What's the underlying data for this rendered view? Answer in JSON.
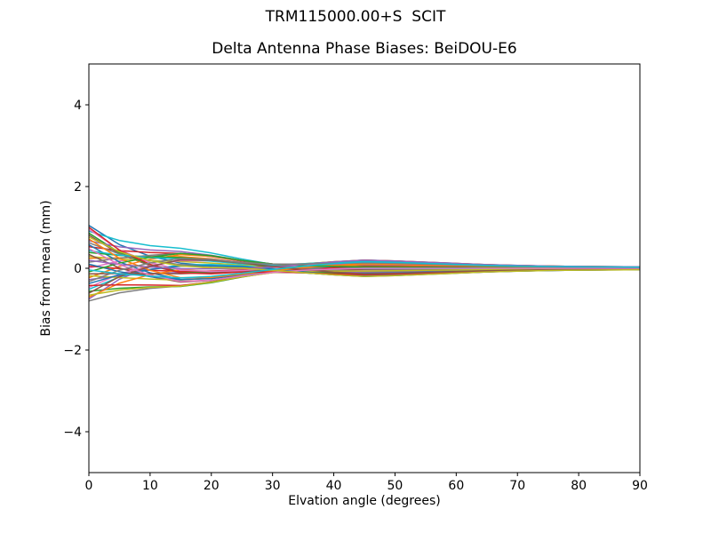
{
  "figure": {
    "suptitle": "TRM115000.00+S  SCIT",
    "background": "#ffffff",
    "text_color": "#000000"
  },
  "chart_data": {
    "type": "line",
    "title": "Delta Antenna Phase Biases: BeiDOU-E6",
    "xlabel": "Elvation angle (degrees)",
    "ylabel": "Bias from mean (mm)",
    "xlim": [
      0,
      90
    ],
    "ylim": [
      -5,
      5
    ],
    "xticks": [
      0,
      10,
      20,
      30,
      40,
      50,
      60,
      70,
      80,
      90
    ],
    "xtick_labels": [
      "0",
      "10",
      "20",
      "30",
      "40",
      "50",
      "60",
      "70",
      "80",
      "90"
    ],
    "yticks": [
      -4,
      -2,
      0,
      2,
      4
    ],
    "ytick_labels": [
      "−4",
      "−2",
      "0",
      "2",
      "4"
    ],
    "grid": false,
    "legend": "none",
    "line_width": 1.5,
    "colors": [
      "#1f77b4",
      "#ff7f0e",
      "#2ca02c",
      "#d62728",
      "#9467bd",
      "#8c564b",
      "#e377c2",
      "#7f7f7f",
      "#bcbd22",
      "#17becf"
    ],
    "x": [
      0,
      5,
      10,
      15,
      20,
      25,
      30,
      35,
      40,
      45,
      50,
      55,
      60,
      65,
      70,
      75,
      80,
      85,
      90
    ],
    "series": [
      {
        "values": [
          1.05,
          0.578,
          0.294,
          0.126,
          0.063,
          0.032,
          0.04,
          0.1,
          0.16,
          0.2,
          0.18,
          0.15,
          0.12,
          0.09,
          0.07,
          0.055,
          0.045,
          0.04,
          0.035
        ]
      },
      {
        "values": [
          0.244,
          0.256,
          0.271,
          0.286,
          0.231,
          0.142,
          0.038,
          -0.04,
          -0.104,
          -0.147,
          -0.133,
          -0.111,
          -0.088,
          -0.066,
          -0.052,
          -0.041,
          -0.033,
          -0.029,
          -0.026
        ]
      },
      {
        "values": [
          -0.563,
          -0.489,
          -0.457,
          -0.446,
          -0.353,
          -0.216,
          -0.096,
          -0.041,
          -0.006,
          0.017,
          0.016,
          0.013,
          0.01,
          0.008,
          0.006,
          0.005,
          0.004,
          0.003,
          0.003
        ]
      },
      {
        "values": [
          0.528,
          0.433,
          0.386,
          0.364,
          0.286,
          0.175,
          0.104,
          0.101,
          0.113,
          0.122,
          0.11,
          0.091,
          0.073,
          0.055,
          0.043,
          0.033,
          0.027,
          0.024,
          0.021
        ]
      },
      {
        "values": [
          -0.278,
          -0.184,
          -0.13,
          -0.1,
          -0.073,
          -0.043,
          -0.057,
          -0.107,
          -0.161,
          -0.197,
          -0.177,
          -0.148,
          -0.118,
          -0.089,
          -0.069,
          -0.054,
          -0.044,
          -0.039,
          -0.034
        ]
      },
      {
        "values": [
          0.813,
          0.35,
          0.066,
          -0.108,
          -0.124,
          -0.084,
          -0.02,
          0.057,
          0.124,
          0.168,
          0.152,
          0.126,
          0.101,
          0.076,
          0.059,
          0.046,
          0.038,
          0.034,
          0.029
        ]
      },
      {
        "values": [
          0.006,
          0.177,
          0.291,
          0.368,
          0.309,
          0.193,
          0.086,
          0.022,
          -0.022,
          -0.052,
          -0.047,
          -0.039,
          -0.031,
          -0.023,
          -0.018,
          -0.014,
          -0.012,
          -0.01,
          -0.009
        ]
      },
      {
        "values": [
          -0.8,
          -0.6,
          -0.491,
          -0.434,
          -0.332,
          -0.202,
          -0.107,
          -0.09,
          -0.091,
          -0.092,
          -0.082,
          -0.069,
          -0.055,
          -0.041,
          -0.032,
          -0.025,
          -0.021,
          -0.018,
          -0.016
        ]
      },
      {
        "values": [
          0.291,
          0.222,
          0.184,
          0.165,
          0.127,
          0.078,
          0.072,
          0.111,
          0.157,
          0.188,
          0.169,
          0.141,
          0.113,
          0.085,
          0.066,
          0.052,
          0.042,
          0.038,
          0.033
        ]
      },
      {
        "values": [
          -0.515,
          -0.214,
          -0.029,
          0.083,
          0.091,
          0.061,
          0.001,
          -0.073,
          -0.14,
          -0.185,
          -0.166,
          -0.139,
          -0.111,
          -0.083,
          -0.065,
          -0.051,
          -0.042,
          -0.037,
          -0.032
        ]
      },
      {
        "values": [
          0.576,
          0.154,
          -0.111,
          -0.275,
          -0.255,
          -0.164,
          -0.074,
          -0.003,
          0.05,
          0.085,
          0.076,
          0.063,
          0.051,
          0.038,
          0.03,
          0.023,
          0.019,
          0.017,
          0.015
        ]
      },
      {
        "values": [
          -0.231,
          0.045,
          0.221,
          0.335,
          0.291,
          0.184,
          0.107,
          0.078,
          0.067,
          0.06,
          0.054,
          0.045,
          0.036,
          0.027,
          0.021,
          0.016,
          0.013,
          0.012,
          0.01
        ]
      },
      {
        "values": [
          0.86,
          0.383,
          0.091,
          -0.087,
          -0.108,
          -0.074,
          -0.085,
          -0.112,
          -0.149,
          -0.173,
          -0.156,
          -0.13,
          -0.104,
          -0.078,
          -0.061,
          -0.048,
          -0.039,
          -0.035,
          -0.03
        ]
      },
      {
        "values": [
          0.054,
          -0.009,
          -0.05,
          -0.076,
          -0.066,
          -0.041,
          0.017,
          0.087,
          0.152,
          0.195,
          0.176,
          0.147,
          0.117,
          0.088,
          0.068,
          0.054,
          0.044,
          0.039,
          0.034
        ]
      },
      {
        "values": [
          -0.753,
          -0.267,
          0.034,
          0.221,
          0.217,
          0.141,
          0.059,
          -0.017,
          -0.076,
          -0.115,
          -0.104,
          -0.086,
          -0.069,
          -0.052,
          -0.04,
          -0.032,
          -0.026,
          -0.023,
          -0.02
        ]
      },
      {
        "values": [
          0.338,
          0.007,
          -0.203,
          -0.336,
          -0.297,
          -0.188,
          -0.104,
          -0.063,
          -0.041,
          -0.026,
          -0.023,
          -0.019,
          -0.015,
          -0.012,
          -0.009,
          -0.007,
          -0.006,
          -0.005,
          -0.005
        ]
      },
      {
        "values": [
          -0.468,
          -0.141,
          0.063,
          0.189,
          0.178,
          0.115,
          0.096,
          0.108,
          0.135,
          0.153,
          0.138,
          0.115,
          0.092,
          0.069,
          0.053,
          0.042,
          0.034,
          0.031,
          0.027
        ]
      },
      {
        "values": [
          0.623,
          0.35,
          0.186,
          0.091,
          0.05,
          0.027,
          -0.036,
          -0.098,
          -0.159,
          -0.2,
          -0.18,
          -0.15,
          -0.12,
          -0.09,
          -0.07,
          -0.055,
          -0.045,
          -0.04,
          -0.035
        ]
      },
      {
        "values": [
          -0.183,
          -0.228,
          -0.263,
          -0.29,
          -0.237,
          -0.146,
          -0.042,
          0.036,
          0.099,
          0.142,
          0.127,
          0.106,
          0.085,
          0.064,
          0.05,
          0.039,
          0.032,
          0.028,
          0.025
        ]
      },
      {
        "values": [
          0.908,
          0.679,
          0.554,
          0.489,
          0.374,
          0.227,
          0.098,
          0.045,
          0.012,
          -0.009,
          -0.008,
          -0.007,
          -0.006,
          -0.004,
          -0.003,
          -0.003,
          -0.002,
          -0.002,
          -0.002
        ]
      },
      {
        "values": [
          0.101,
          -0.083,
          -0.203,
          -0.281,
          -0.241,
          -0.151,
          -0.102,
          -0.102,
          -0.117,
          -0.127,
          -0.115,
          -0.096,
          -0.076,
          -0.057,
          -0.045,
          -0.035,
          -0.029,
          -0.025,
          -0.022
        ]
      },
      {
        "values": [
          -0.705,
          -0.364,
          -0.156,
          -0.034,
          0.001,
          0.006,
          0.053,
          0.106,
          0.161,
          0.198,
          0.178,
          0.149,
          0.119,
          0.089,
          0.069,
          0.055,
          0.045,
          0.04,
          0.035
        ]
      },
      {
        "values": [
          0.386,
          0.315,
          0.28,
          0.264,
          0.206,
          0.127,
          0.025,
          -0.053,
          -0.12,
          -0.164,
          -0.148,
          -0.123,
          -0.098,
          -0.074,
          -0.057,
          -0.045,
          -0.037,
          -0.033,
          -0.029
        ]
      },
      {
        "values": [
          -0.42,
          -0.406,
          -0.41,
          -0.42,
          -0.336,
          -0.208,
          -0.088,
          -0.026,
          0.017,
          0.046,
          0.041,
          0.034,
          0.027,
          0.021,
          0.016,
          0.013,
          0.01,
          0.009,
          0.008
        ]
      },
      {
        "values": [
          0.671,
          0.525,
          0.448,
          0.411,
          0.318,
          0.194,
          0.107,
          0.093,
          0.097,
          0.099,
          0.089,
          0.075,
          0.06,
          0.045,
          0.035,
          0.027,
          0.022,
          0.02,
          0.017
        ]
      },
      {
        "values": [
          -0.136,
          -0.13,
          -0.13,
          -0.132,
          -0.106,
          -0.065,
          -0.069,
          -0.11,
          -0.158,
          -0.19,
          -0.171,
          -0.143,
          -0.114,
          -0.086,
          -0.067,
          -0.052,
          -0.043,
          -0.038,
          -0.033
        ]
      },
      {
        "values": [
          0.955,
          0.45,
          0.142,
          -0.044,
          -0.077,
          -0.055,
          -0.006,
          0.07,
          0.137,
          0.182,
          0.163,
          0.136,
          0.109,
          0.082,
          0.064,
          0.05,
          0.041,
          0.036,
          0.032
        ]
      },
      {
        "values": [
          0.149,
          0.248,
          0.318,
          0.368,
          0.304,
          0.188,
          0.076,
          0.007,
          -0.044,
          -0.078,
          -0.07,
          -0.058,
          -0.047,
          -0.035,
          -0.027,
          -0.021,
          -0.018,
          -0.016,
          -0.014
        ]
      },
      {
        "values": [
          -0.658,
          -0.532,
          -0.467,
          -0.437,
          -0.34,
          -0.208,
          -0.107,
          -0.08,
          -0.072,
          -0.067,
          -0.06,
          -0.05,
          -0.04,
          -0.03,
          -0.023,
          -0.018,
          -0.015,
          -0.013,
          -0.012
        ]
      },
      {
        "values": [
          0.433,
          0.322,
          0.261,
          0.229,
          0.175,
          0.106,
          0.082,
          0.112,
          0.151,
          0.177,
          0.159,
          0.133,
          0.106,
          0.08,
          0.062,
          0.049,
          0.04,
          0.035,
          0.031
        ]
      },
      {
        "values": [
          -0.373,
          -0.159,
          -0.028,
          0.052,
          0.059,
          0.04,
          -0.014,
          -0.084,
          -0.15,
          -0.193,
          -0.174,
          -0.145,
          -0.116,
          -0.087,
          -0.068,
          -0.053,
          -0.044,
          -0.039,
          -0.034
        ]
      },
      {
        "values": [
          0.718,
          0.244,
          -0.05,
          -0.232,
          -0.225,
          -0.145,
          -0.062,
          0.013,
          0.071,
          0.109,
          0.098,
          0.082,
          0.066,
          0.049,
          0.038,
          0.03,
          0.025,
          0.022,
          0.019
        ]
      },
      {
        "values": [
          -0.088,
          0.129,
          0.271,
          0.364,
          0.311,
          0.194,
          0.106,
          0.066,
          0.047,
          0.034,
          0.03,
          0.025,
          0.02,
          0.015,
          0.012,
          0.009,
          0.008,
          0.007,
          0.006
        ]
      },
      {
        "values": [
          1.003,
          0.442,
          0.097,
          -0.113,
          -0.136,
          -0.092,
          -0.093,
          -0.11,
          -0.139,
          -0.158,
          -0.142,
          -0.119,
          -0.095,
          -0.071,
          -0.055,
          -0.044,
          -0.036,
          -0.032,
          -0.028
        ]
      },
      {
        "values": [
          0.196,
          0.093,
          0.031,
          -0.007,
          -0.014,
          -0.01,
          0.032,
          0.096,
          0.158,
          0.199,
          0.179,
          0.15,
          0.12,
          0.09,
          0.07,
          0.055,
          0.045,
          0.04,
          0.035
        ]
      },
      {
        "values": [
          -0.61,
          -0.204,
          0.049,
          0.206,
          0.198,
          0.129,
          0.046,
          -0.031,
          -0.094,
          -0.136,
          -0.122,
          -0.102,
          -0.082,
          -0.061,
          -0.048,
          -0.037,
          -0.031,
          -0.027,
          -0.024
        ]
      },
      {
        "values": [
          0.481,
          0.085,
          -0.165,
          -0.322,
          -0.291,
          -0.186,
          -0.1,
          -0.05,
          -0.02,
          0.0,
          0.0,
          0.0,
          0.0,
          0.0,
          0.0,
          0.0,
          0.0,
          0.0,
          0.0
        ]
      },
      {
        "values": [
          -0.326,
          -0.046,
          0.131,
          0.243,
          0.217,
          0.138,
          0.101,
          0.104,
          0.122,
          0.134,
          0.121,
          0.101,
          0.081,
          0.06,
          0.047,
          0.037,
          0.03,
          0.027,
          0.023
        ]
      },
      {
        "values": [
          0.765,
          0.404,
          0.186,
          0.057,
          0.016,
          0.004,
          -0.049,
          -0.105,
          -0.161,
          -0.199,
          -0.179,
          -0.149,
          -0.12,
          -0.09,
          -0.07,
          -0.055,
          -0.045,
          -0.04,
          -0.035
        ]
      },
      {
        "values": [
          -0.041,
          -0.133,
          -0.194,
          -0.237,
          -0.198,
          -0.123,
          -0.029,
          0.048,
          0.115,
          0.158,
          0.143,
          0.119,
          0.095,
          0.071,
          0.055,
          0.044,
          0.036,
          0.032,
          0.028
        ]
      }
    ]
  }
}
